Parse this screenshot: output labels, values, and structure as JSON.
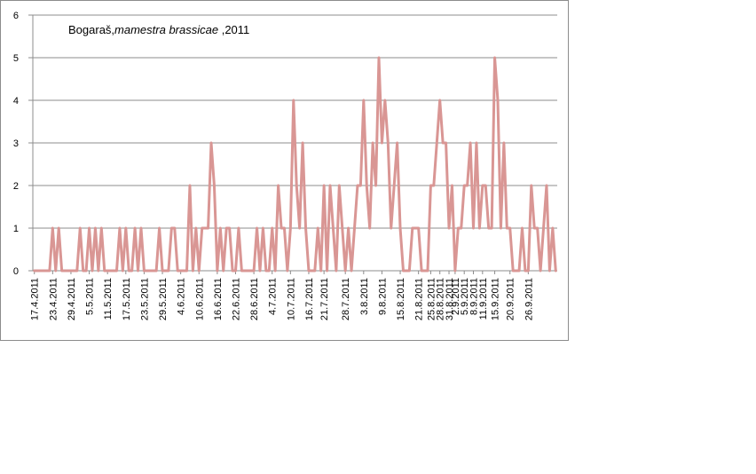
{
  "chart_data": {
    "type": "line",
    "title_parts": {
      "prefix": "Bogaraš,",
      "species": "mamestra brassicae",
      "suffix": " ,2011"
    },
    "xlabel": "",
    "ylabel": "",
    "ylim": [
      0,
      6
    ],
    "yticks": [
      0,
      1,
      2,
      3,
      4,
      5,
      6
    ],
    "grid": "horizontal",
    "legend": "none",
    "line_color": "#d99694",
    "start_date": "17.4.2011",
    "tick_labels": [
      "17.4.2011",
      "23.4.2011",
      "29.4.2011",
      "5.5.2011",
      "11.5.2011",
      "17.5.2011",
      "23.5.2011",
      "29.5.2011",
      "4.6.2011",
      "10.6.2011",
      "16.6.2011",
      "22.6.2011",
      "28.6.2011",
      "4.7.2011",
      "10.7.2011",
      "16.7.2011",
      "21.7.2011",
      "28.7.2011",
      "3.8.2011",
      "9.8.2011",
      "15.8.2011",
      "21.8.2011",
      "25.8.2011",
      "28.8.2011",
      "31.8.2011",
      "2.9.2011",
      "5.9.2011",
      "8.9.2011",
      "11.9.2011",
      "15.9.2011",
      "20.9.2011",
      "26.9.2011"
    ],
    "series": [
      {
        "values": [
          0,
          0,
          0,
          0,
          0,
          0,
          1,
          0,
          1,
          0,
          0,
          0,
          0,
          0,
          0,
          1,
          0,
          0,
          1,
          0,
          1,
          0,
          1,
          0,
          0,
          0,
          0,
          0,
          1,
          0,
          1,
          0,
          0,
          1,
          0,
          1,
          0,
          0,
          0,
          0,
          0,
          1,
          0,
          0,
          0,
          1,
          1,
          0,
          0,
          0,
          0,
          2,
          0,
          1,
          0,
          1,
          1,
          1,
          3,
          2,
          0,
          1,
          0,
          1,
          1,
          0,
          0,
          1,
          0,
          0,
          0,
          0,
          0,
          1,
          0,
          1,
          0,
          0,
          1,
          0,
          2,
          1,
          1,
          0,
          1,
          4,
          2,
          1,
          3,
          1,
          0,
          0,
          0,
          1,
          0,
          2,
          0,
          2,
          1,
          0,
          2,
          1,
          0,
          1,
          0,
          1,
          2,
          2,
          4,
          2,
          1,
          3,
          2,
          5,
          3,
          4,
          3,
          1,
          2,
          3,
          1,
          0,
          0,
          0,
          1,
          1,
          1,
          0,
          0,
          0,
          2,
          2,
          3,
          4,
          3,
          3,
          1,
          2,
          0,
          1,
          1,
          2,
          2,
          3,
          1,
          3,
          1,
          2,
          2,
          1,
          1,
          5,
          4,
          1,
          3,
          1,
          1,
          0,
          0,
          0,
          1,
          0,
          0,
          2,
          1,
          1,
          0,
          1,
          2,
          0,
          1,
          0
        ]
      }
    ]
  }
}
